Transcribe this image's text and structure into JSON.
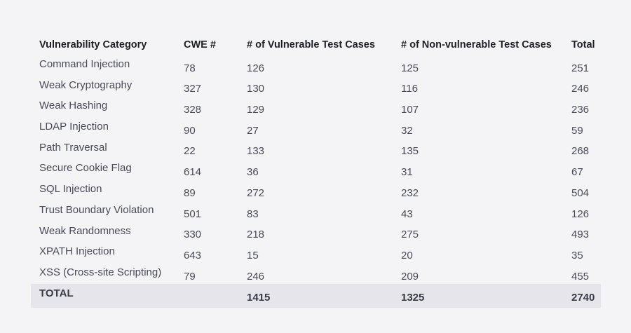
{
  "table": {
    "headers": [
      "Vulnerability Category",
      "CWE #",
      "# of Vulnerable Test Cases",
      "# of Non-vulnerable Test Cases",
      "Total"
    ],
    "rows": [
      [
        "Command Injection",
        "78",
        "126",
        "125",
        "251"
      ],
      [
        "Weak Cryptography",
        "327",
        "130",
        "116",
        "246"
      ],
      [
        "Weak Hashing",
        "328",
        "129",
        "107",
        "236"
      ],
      [
        "LDAP Injection",
        "90",
        "27",
        "32",
        "59"
      ],
      [
        "Path Traversal",
        "22",
        "133",
        "135",
        "268"
      ],
      [
        "Secure Cookie Flag",
        "614",
        "36",
        "31",
        "67"
      ],
      [
        "SQL Injection",
        "89",
        "272",
        "232",
        "504"
      ],
      [
        "Trust Boundary Violation",
        "501",
        "83",
        "43",
        "126"
      ],
      [
        "Weak Randomness",
        "330",
        "218",
        "275",
        "493"
      ],
      [
        "XPATH Injection",
        "643",
        "15",
        "20",
        "35"
      ],
      [
        "XSS (Cross-site Scripting)",
        "79",
        "246",
        "209",
        "455"
      ]
    ],
    "total": [
      "TOTAL",
      "",
      "1415",
      "1325",
      "2740"
    ]
  }
}
